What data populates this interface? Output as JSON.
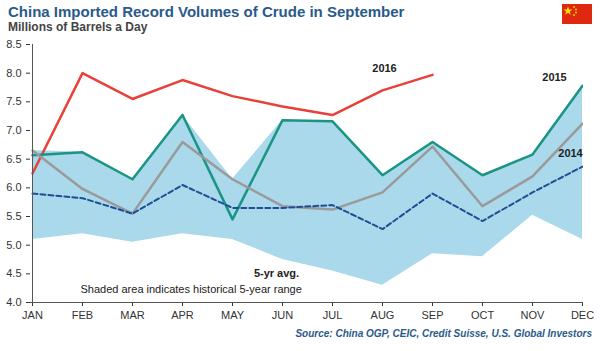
{
  "chart_data": {
    "type": "line",
    "title": "China Imported Record Volumes of Crude in September",
    "subtitle": "Millions of Barrels a Day",
    "source": "Source: China OGP, CEIC, Credit Suisse, U.S. Global Investors",
    "annotation": "Shaded area indicates historical 5-year range",
    "categories": [
      "JAN",
      "FEB",
      "MAR",
      "APR",
      "MAY",
      "JUN",
      "JUL",
      "AUG",
      "SEP",
      "OCT",
      "NOV",
      "DEC"
    ],
    "series": [
      {
        "name": "2016",
        "color": "#e8413a",
        "line_style": "solid",
        "values": [
          6.25,
          8.0,
          7.55,
          7.88,
          7.6,
          7.42,
          7.27,
          7.7,
          7.97,
          null,
          null,
          null
        ]
      },
      {
        "name": "2015",
        "color": "#1a9484",
        "line_style": "solid",
        "values": [
          6.57,
          6.62,
          6.15,
          7.27,
          5.45,
          7.18,
          7.16,
          6.22,
          6.8,
          6.22,
          6.58,
          7.78
        ]
      },
      {
        "name": "2014",
        "color": "#9a9a9a",
        "line_style": "solid",
        "values": [
          6.65,
          5.98,
          5.55,
          6.8,
          6.15,
          5.68,
          5.62,
          5.92,
          6.72,
          5.68,
          6.2,
          7.12
        ]
      },
      {
        "name": "5-yr avg.",
        "color": "#1f4e96",
        "line_style": "dashed",
        "values": [
          5.9,
          5.82,
          5.55,
          6.05,
          5.65,
          5.65,
          5.7,
          5.28,
          5.9,
          5.42,
          5.92,
          6.37
        ]
      }
    ],
    "band": {
      "color": "#a9d9ea",
      "low": [
        5.1,
        5.2,
        5.05,
        5.2,
        5.1,
        4.75,
        4.55,
        4.3,
        4.85,
        4.8,
        5.52,
        5.1
      ],
      "high": [
        6.65,
        6.62,
        6.15,
        7.27,
        6.15,
        7.18,
        7.16,
        6.22,
        6.8,
        6.22,
        6.58,
        7.78
      ]
    },
    "ylim": [
      4,
      8.5
    ],
    "yticks": [
      {
        "value": 4,
        "label": "4.0"
      },
      4.5,
      {
        "value": 5,
        "label": "5.0"
      },
      5.5,
      {
        "value": 6,
        "label": "6.0"
      },
      6.5,
      {
        "value": 7,
        "label": "7.0"
      },
      7.5,
      {
        "value": 8,
        "label": "8.0"
      },
      8.5
    ],
    "grid": false
  }
}
